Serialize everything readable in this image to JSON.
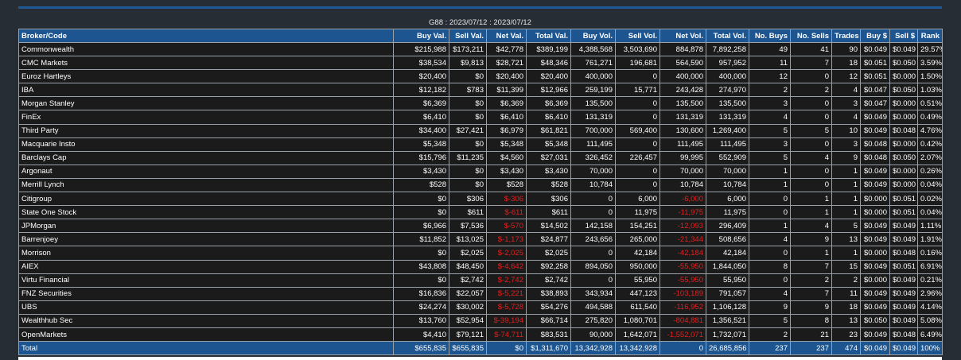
{
  "caption": "G88 : 2023/07/12 : 2023/07/12",
  "columns": [
    "Broker/Code",
    "Buy Val.",
    "Sell Val.",
    "Net Val.",
    "Total Val.",
    "Buy Vol.",
    "Sell Vol.",
    "Net Vol.",
    "Total Vol.",
    "No. Buys",
    "No. Sells",
    "Trades",
    "Buy $",
    "Sell $",
    "Rank"
  ],
  "rows": [
    [
      "Commonwealth",
      "$215,988",
      "$173,211",
      "$42,778",
      "$389,199",
      "4,388,568",
      "3,503,690",
      "884,878",
      "7,892,258",
      "49",
      "41",
      "90",
      "$0.049",
      "$0.049",
      "29.57%"
    ],
    [
      "CMC Markets",
      "$38,534",
      "$9,813",
      "$28,721",
      "$48,346",
      "761,271",
      "196,681",
      "564,590",
      "957,952",
      "11",
      "7",
      "18",
      "$0.051",
      "$0.050",
      "3.59%"
    ],
    [
      "Euroz Hartleys",
      "$20,400",
      "$0",
      "$20,400",
      "$20,400",
      "400,000",
      "0",
      "400,000",
      "400,000",
      "12",
      "0",
      "12",
      "$0.051",
      "$0.000",
      "1.50%"
    ],
    [
      "IBA",
      "$12,182",
      "$783",
      "$11,399",
      "$12,966",
      "259,199",
      "15,771",
      "243,428",
      "274,970",
      "2",
      "2",
      "4",
      "$0.047",
      "$0.050",
      "1.03%"
    ],
    [
      "Morgan Stanley",
      "$6,369",
      "$0",
      "$6,369",
      "$6,369",
      "135,500",
      "0",
      "135,500",
      "135,500",
      "3",
      "0",
      "3",
      "$0.047",
      "$0.000",
      "0.51%"
    ],
    [
      "FinEx",
      "$6,410",
      "$0",
      "$6,410",
      "$6,410",
      "131,319",
      "0",
      "131,319",
      "131,319",
      "4",
      "0",
      "4",
      "$0.049",
      "$0.000",
      "0.49%"
    ],
    [
      "Third Party",
      "$34,400",
      "$27,421",
      "$6,979",
      "$61,821",
      "700,000",
      "569,400",
      "130,600",
      "1,269,400",
      "5",
      "5",
      "10",
      "$0.049",
      "$0.048",
      "4.76%"
    ],
    [
      "Macquarie Insto",
      "$5,348",
      "$0",
      "$5,348",
      "$5,348",
      "111,495",
      "0",
      "111,495",
      "111,495",
      "3",
      "0",
      "3",
      "$0.048",
      "$0.000",
      "0.42%"
    ],
    [
      "Barclays Cap",
      "$15,796",
      "$11,235",
      "$4,560",
      "$27,031",
      "326,452",
      "226,457",
      "99,995",
      "552,909",
      "5",
      "4",
      "9",
      "$0.048",
      "$0.050",
      "2.07%"
    ],
    [
      "Argonaut",
      "$3,430",
      "$0",
      "$3,430",
      "$3,430",
      "70,000",
      "0",
      "70,000",
      "70,000",
      "1",
      "0",
      "1",
      "$0.049",
      "$0.000",
      "0.26%"
    ],
    [
      "Merrill Lynch",
      "$528",
      "$0",
      "$528",
      "$528",
      "10,784",
      "0",
      "10,784",
      "10,784",
      "1",
      "0",
      "1",
      "$0.049",
      "$0.000",
      "0.04%"
    ],
    [
      "Citigroup",
      "$0",
      "$306",
      "$-306",
      "$306",
      "0",
      "6,000",
      "-6,000",
      "6,000",
      "0",
      "1",
      "1",
      "$0.000",
      "$0.051",
      "0.02%"
    ],
    [
      "State One Stock",
      "$0",
      "$611",
      "$-611",
      "$611",
      "0",
      "11,975",
      "-11,975",
      "11,975",
      "0",
      "1",
      "1",
      "$0.000",
      "$0.051",
      "0.04%"
    ],
    [
      "JPMorgan",
      "$6,966",
      "$7,536",
      "$-570",
      "$14,502",
      "142,158",
      "154,251",
      "-12,093",
      "296,409",
      "1",
      "4",
      "5",
      "$0.049",
      "$0.049",
      "1.11%"
    ],
    [
      "Barrenjoey",
      "$11,852",
      "$13,025",
      "$-1,173",
      "$24,877",
      "243,656",
      "265,000",
      "-21,344",
      "508,656",
      "4",
      "9",
      "13",
      "$0.049",
      "$0.049",
      "1.91%"
    ],
    [
      "Morrison",
      "$0",
      "$2,025",
      "$-2,025",
      "$2,025",
      "0",
      "42,184",
      "-42,184",
      "42,184",
      "0",
      "1",
      "1",
      "$0.000",
      "$0.048",
      "0.16%"
    ],
    [
      "AIEX",
      "$43,808",
      "$48,450",
      "$-4,642",
      "$92,258",
      "894,050",
      "950,000",
      "-55,950",
      "1,844,050",
      "8",
      "7",
      "15",
      "$0.049",
      "$0.051",
      "6.91%"
    ],
    [
      "Virtu Financial",
      "$0",
      "$2,742",
      "$-2,742",
      "$2,742",
      "0",
      "55,950",
      "-55,950",
      "55,950",
      "0",
      "2",
      "2",
      "$0.000",
      "$0.049",
      "0.21%"
    ],
    [
      "FNZ Securities",
      "$16,836",
      "$22,057",
      "$-5,221",
      "$38,893",
      "343,934",
      "447,123",
      "-103,189",
      "791,057",
      "4",
      "7",
      "11",
      "$0.049",
      "$0.049",
      "2.96%"
    ],
    [
      "UBS",
      "$24,274",
      "$30,002",
      "$-5,728",
      "$54,276",
      "494,588",
      "611,540",
      "-116,952",
      "1,106,128",
      "9",
      "9",
      "18",
      "$0.049",
      "$0.049",
      "4.14%"
    ],
    [
      "Wealthhub Sec",
      "$13,760",
      "$52,954",
      "$-39,194",
      "$66,714",
      "275,820",
      "1,080,701",
      "-804,881",
      "1,356,521",
      "5",
      "8",
      "13",
      "$0.050",
      "$0.049",
      "5.08%"
    ],
    [
      "OpenMarkets",
      "$4,410",
      "$79,121",
      "$-74,711",
      "$83,531",
      "90,000",
      "1,642,071",
      "-1,552,071",
      "1,732,071",
      "2",
      "21",
      "23",
      "$0.049",
      "$0.048",
      "6.49%"
    ]
  ],
  "total": [
    "Total",
    "$655,835",
    "$655,835",
    "$0",
    "$1,311,670",
    "13,342,928",
    "13,342,928",
    "0",
    "26,685,856",
    "237",
    "237",
    "474",
    "$0.049",
    "$0.049",
    "100%"
  ],
  "colors": {
    "header_bg": "#1c5590",
    "row_bg": "#1b1b1b",
    "page_bg": "#272d35",
    "negative": "#e02020",
    "grid": "#9aa0a8"
  }
}
